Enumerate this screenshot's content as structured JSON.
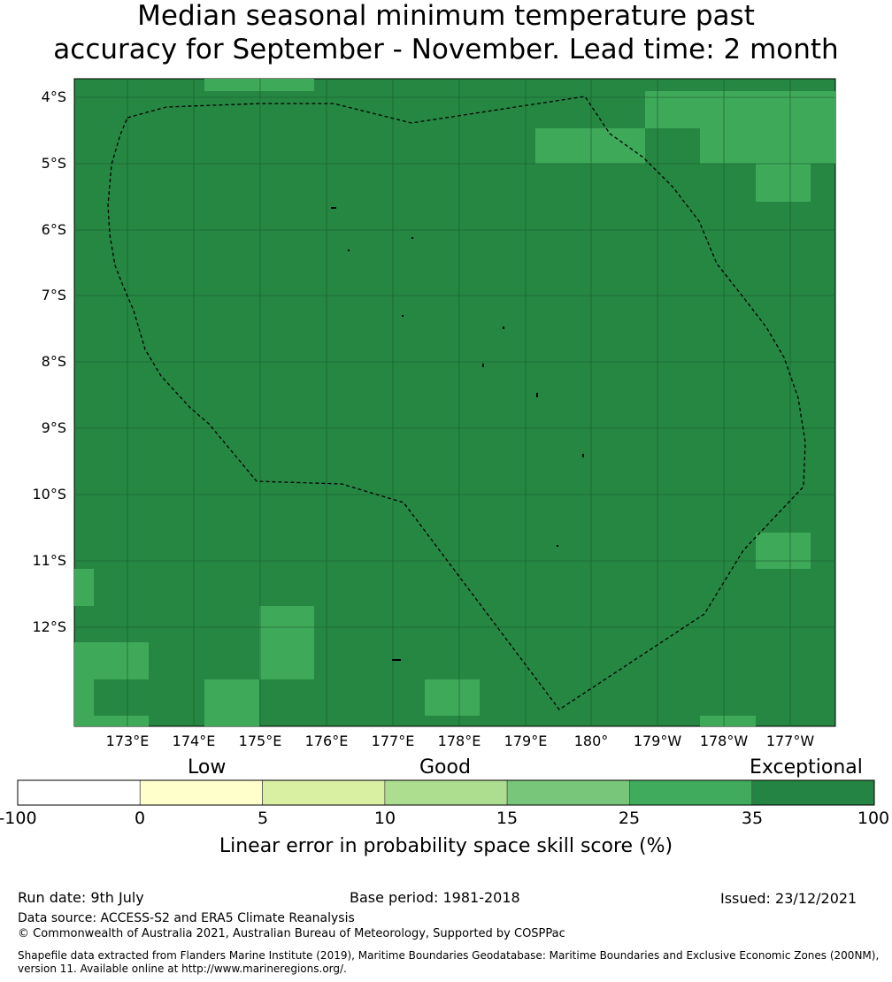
{
  "title": {
    "line1": "Median seasonal minimum temperature past",
    "line2": "accuracy for September - November. Lead time: 2 month"
  },
  "map": {
    "background_color": "#258742",
    "cell_highlight_color": "#3fa95a",
    "boundary_style": "dashed",
    "y_axis_labels": [
      "4°S",
      "5°S",
      "6°S",
      "7°S",
      "8°S",
      "9°S",
      "10°S",
      "11°S",
      "12°S"
    ],
    "x_axis_labels": [
      "173°E",
      "174°E",
      "175°E",
      "176°E",
      "177°E",
      "178°E",
      "179°E",
      "180°",
      "179°W",
      "178°W",
      "177°W"
    ]
  },
  "colorbar": {
    "category_labels": [
      "Low",
      "Good",
      "Exceptional"
    ],
    "ticks": [
      "-100",
      "0",
      "5",
      "10",
      "15",
      "25",
      "35",
      "100"
    ],
    "colors": [
      "#ffffff",
      "#ffffcc",
      "#d9f0a3",
      "#addd8e",
      "#78c679",
      "#41ab5d",
      "#238443"
    ],
    "title": "Linear error in probability space skill score (%)"
  },
  "footer": {
    "run_date": "Run date: 9th July",
    "base_period": "Base period: 1981-2018",
    "issued": "Issued: 23/12/2021",
    "data_source": "Data source: ACCESS-S2 and ERA5 Climate Reanalysis",
    "copyright": "© Commonwealth of Australia 2021, Australian Bureau of Meteorology, Supported by COSPPac",
    "shapefile_line1": "Shapefile data extracted from Flanders Marine Institute (2019), Maritime Boundaries Geodatabase: Maritime Boundaries and Exclusive Economic Zones (200NM),",
    "shapefile_line2": "version 11. Available online at http://www.marineregions.org/."
  }
}
